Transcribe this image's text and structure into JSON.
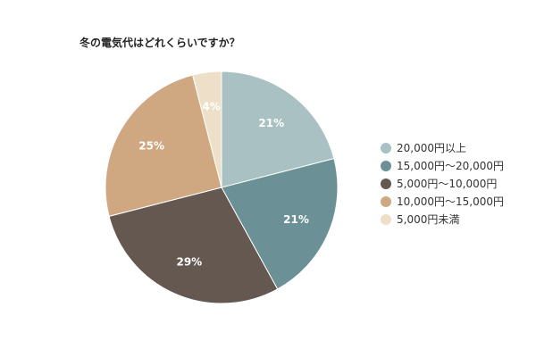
{
  "chart_data": {
    "type": "pie",
    "title": "冬の電気代はどれくらいですか？",
    "legend_position": "right",
    "start_angle_deg": 0,
    "direction": "clockwise",
    "slices": [
      {
        "label": "20,000円以上",
        "value": 21,
        "display": "21%",
        "color": "#a9c1c2"
      },
      {
        "label": "15,000円～20,000円",
        "value": 21,
        "display": "21%",
        "color": "#6b9196"
      },
      {
        "label": "5,000円～10,000円",
        "value": 29,
        "display": "29%",
        "color": "#655850"
      },
      {
        "label": "10,000円～15,000円",
        "value": 25,
        "display": "25%",
        "color": "#cfa882"
      },
      {
        "label": "5,000円未満",
        "value": 4,
        "display": "4%",
        "color": "#eee0c8"
      }
    ]
  }
}
